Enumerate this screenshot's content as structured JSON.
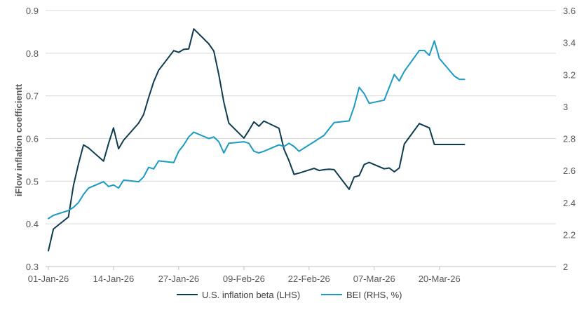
{
  "chart_data": {
    "type": "line",
    "ylabel": "iFlow inflation coefficientt",
    "y_left": {
      "min": 0.3,
      "max": 0.9,
      "ticks": [
        "0.3",
        "0.4",
        "0.5",
        "0.6",
        "0.7",
        "0.8",
        "0.9"
      ]
    },
    "y_right": {
      "min": 2.0,
      "max": 3.6,
      "ticks": [
        "2",
        "2.2",
        "2.4",
        "2.6",
        "2.8",
        "3",
        "3.2",
        "3.4",
        "3.6"
      ]
    },
    "x_ticks": [
      "01-Jan-26",
      "14-Jan-26",
      "27-Jan-26",
      "09-Feb-26",
      "22-Feb-26",
      "07-Mar-26",
      "20-Mar-26"
    ],
    "grid": "horizontal",
    "legend_position": "bottom",
    "colors": {
      "beta": "#0d3b4f",
      "bei": "#1b9bc4",
      "grid": "#d9d9d9",
      "text": "#595959"
    },
    "series": [
      {
        "name": "U.S. inflation beta (LHS)",
        "axis": "left",
        "color": "#0d3b4f",
        "x": [
          "01-Jan-26",
          "02-Jan-26",
          "05-Jan-26",
          "06-Jan-26",
          "07-Jan-26",
          "08-Jan-26",
          "09-Jan-26",
          "12-Jan-26",
          "13-Jan-26",
          "14-Jan-26",
          "15-Jan-26",
          "16-Jan-26",
          "19-Jan-26",
          "20-Jan-26",
          "21-Jan-26",
          "22-Jan-26",
          "23-Jan-26",
          "26-Jan-26",
          "27-Jan-26",
          "28-Jan-26",
          "29-Jan-26",
          "30-Jan-26",
          "02-Feb-26",
          "03-Feb-26",
          "04-Feb-26",
          "05-Feb-26",
          "06-Feb-26",
          "09-Feb-26",
          "10-Feb-26",
          "11-Feb-26",
          "12-Feb-26",
          "13-Feb-26",
          "16-Feb-26",
          "17-Feb-26",
          "18-Feb-26",
          "19-Feb-26",
          "20-Feb-26",
          "23-Feb-26",
          "24-Feb-26",
          "25-Feb-26",
          "26-Feb-26",
          "27-Feb-26",
          "02-Mar-26",
          "03-Mar-26",
          "04-Mar-26",
          "05-Mar-26",
          "06-Mar-26",
          "09-Mar-26",
          "10-Mar-26",
          "11-Mar-26",
          "12-Mar-26",
          "13-Mar-26",
          "16-Mar-26",
          "17-Mar-26",
          "18-Mar-26",
          "19-Mar-26",
          "20-Mar-26",
          "23-Mar-26",
          "24-Mar-26",
          "25-Mar-26"
        ],
        "values": [
          0.337,
          0.388,
          0.416,
          0.49,
          0.54,
          0.585,
          0.578,
          0.547,
          0.588,
          0.625,
          0.576,
          0.596,
          0.636,
          0.656,
          0.696,
          0.733,
          0.76,
          0.806,
          0.802,
          0.809,
          0.81,
          0.857,
          0.822,
          0.805,
          0.75,
          0.685,
          0.636,
          0.601,
          0.619,
          0.639,
          0.629,
          0.641,
          0.624,
          0.575,
          0.548,
          0.516,
          0.519,
          0.53,
          0.525,
          0.527,
          0.528,
          0.527,
          0.481,
          0.51,
          0.513,
          0.539,
          0.544,
          0.529,
          0.531,
          0.522,
          0.531,
          0.587,
          0.635,
          0.63,
          0.625,
          0.586,
          0.586,
          0.586,
          0.586,
          0.586
        ]
      },
      {
        "name": "BEI (RHS, %)",
        "axis": "right",
        "color": "#1b9bc4",
        "values": [
          2.3,
          2.32,
          2.35,
          2.37,
          2.4,
          2.45,
          2.49,
          2.53,
          2.5,
          2.51,
          2.49,
          2.54,
          2.53,
          2.56,
          2.62,
          2.61,
          2.66,
          2.65,
          2.72,
          2.76,
          2.81,
          2.84,
          2.8,
          2.81,
          2.78,
          2.71,
          2.77,
          2.78,
          2.77,
          2.72,
          2.71,
          2.72,
          2.76,
          2.75,
          2.77,
          2.75,
          2.72,
          2.78,
          2.8,
          2.82,
          2.86,
          2.9,
          2.91,
          3.0,
          3.12,
          3.08,
          3.02,
          3.04,
          3.12,
          3.2,
          3.16,
          3.22,
          3.35,
          3.35,
          3.32,
          3.41,
          3.3,
          3.19,
          3.17,
          3.17
        ]
      }
    ]
  }
}
